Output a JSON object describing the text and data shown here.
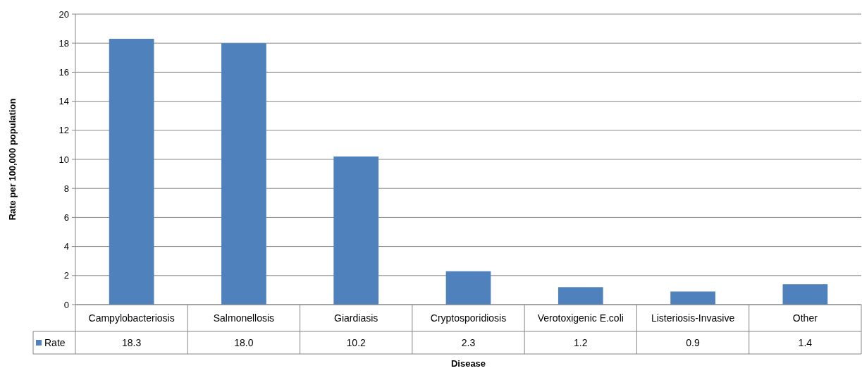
{
  "chart_data": {
    "type": "bar",
    "xlabel": "Disease",
    "ylabel": "Rate per 100,000 population",
    "categories": [
      "Campylobacteriosis",
      "Salmonellosis",
      "Giardiasis",
      "Cryptosporidiosis",
      "Verotoxigenic E.coli",
      "Listeriosis-Invasive",
      "Other"
    ],
    "series": [
      {
        "name": "Rate",
        "color": "#4f81bd",
        "values": [
          18.3,
          18.0,
          10.2,
          2.3,
          1.2,
          0.9,
          1.4
        ],
        "value_labels": [
          "18.3",
          "18.0",
          "10.2",
          "2.3",
          "1.2",
          "0.9",
          "1.4"
        ]
      }
    ],
    "ylim": [
      0,
      20
    ],
    "yticks": [
      0,
      2,
      4,
      6,
      8,
      10,
      12,
      14,
      16,
      18,
      20
    ],
    "grid": "y",
    "legend": "bottom left"
  }
}
